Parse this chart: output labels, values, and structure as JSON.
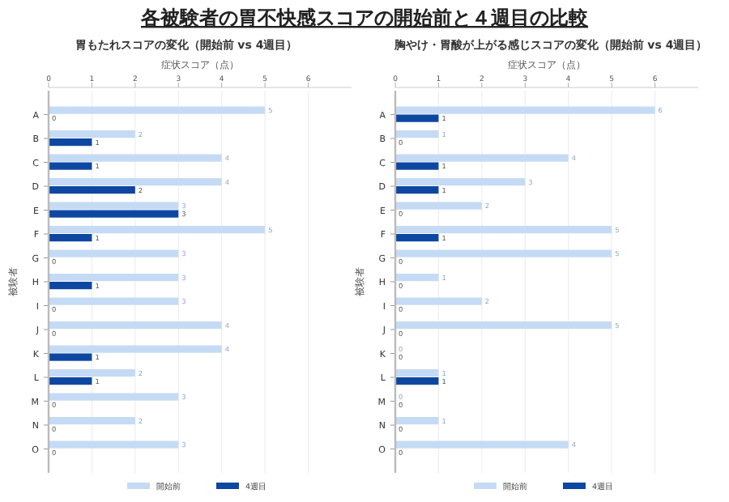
{
  "chart_data": [
    {
      "type": "bar",
      "orientation": "horizontal",
      "title": "各被験者の胃不快感スコアの開始前と４週目の比較",
      "subtitle": "胃もたれスコアの変化（開始前 vs 4週目）",
      "xlabel": "症状スコア（点）",
      "ylabel": "被験者",
      "categories": [
        "A",
        "B",
        "C",
        "D",
        "E",
        "F",
        "G",
        "H",
        "I",
        "J",
        "K",
        "L",
        "M",
        "N",
        "O"
      ],
      "series": [
        {
          "name": "開始前",
          "color": "#c5dbf5",
          "values": [
            5,
            2,
            4,
            4,
            3,
            5,
            3,
            3,
            3,
            4,
            4,
            2,
            3,
            2,
            3
          ]
        },
        {
          "name": "4週目",
          "color": "#0d47a1",
          "values": [
            0,
            1,
            1,
            2,
            3,
            1,
            0,
            1,
            0,
            0,
            1,
            1,
            0,
            0,
            0
          ]
        }
      ],
      "xlim": [
        0,
        7
      ],
      "xticks": [
        0,
        1,
        2,
        3,
        4,
        5,
        6
      ],
      "grid": "x",
      "legend": "bottom",
      "data_labels": true
    },
    {
      "type": "bar",
      "orientation": "horizontal",
      "subtitle": "胸やけ・胃酸が上がる感じスコアの変化（開始前 vs 4週目）",
      "xlabel": "症状スコア（点）",
      "ylabel": "被験者",
      "categories": [
        "A",
        "B",
        "C",
        "D",
        "E",
        "F",
        "G",
        "H",
        "I",
        "J",
        "K",
        "L",
        "M",
        "N",
        "O"
      ],
      "series": [
        {
          "name": "開始前",
          "color": "#c5dbf5",
          "values": [
            6,
            1,
            4,
            3,
            2,
            5,
            5,
            1,
            2,
            5,
            0,
            1,
            0,
            1,
            4
          ]
        },
        {
          "name": "4週目",
          "color": "#0d47a1",
          "values": [
            1,
            0,
            1,
            1,
            0,
            1,
            0,
            0,
            0,
            0,
            0,
            1,
            0,
            0,
            0
          ]
        }
      ],
      "xlim": [
        0,
        7
      ],
      "xticks": [
        0,
        1,
        2,
        3,
        4,
        5,
        6
      ],
      "grid": "x",
      "legend": "bottom",
      "data_labels": true
    }
  ]
}
